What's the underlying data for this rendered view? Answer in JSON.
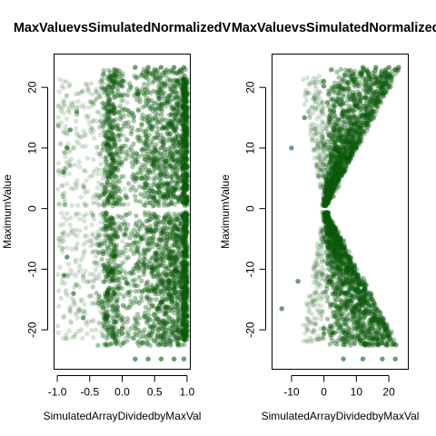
{
  "chart_data": [
    {
      "type": "scatter",
      "title": "MaxValuevsSimulatedNormalizedV",
      "xlabel": "SimulatedArrayDividedbyMaxVal",
      "ylabel": "MaximumValue",
      "xlim": [
        -1.05,
        1.05
      ],
      "ylim": [
        -26.5,
        25.5
      ],
      "xticks": [
        -1.0,
        -0.5,
        0.0,
        0.5,
        1.0
      ],
      "xtick_labels": [
        "-1.0",
        "-0.5",
        "0.0",
        "0.5",
        "1.0"
      ],
      "yticks": [
        -20,
        -10,
        0,
        10,
        20
      ],
      "ytick_labels": [
        "-20",
        "-10",
        "0",
        "10",
        "20"
      ],
      "point_color": "#0b5a0b",
      "grid": false,
      "shape": "ratio",
      "points": [
        {
          "x": 0.0,
          "y": 21.0
        },
        {
          "x": 0.0,
          "y": 20.2
        },
        {
          "x": -0.05,
          "y": 20.6
        },
        {
          "x": 0.0,
          "y": -19.8
        },
        {
          "x": 0.0,
          "y": -20.6
        },
        {
          "x": -0.05,
          "y": -20.2
        },
        {
          "x": 0.2,
          "y": 23.3
        },
        {
          "x": 0.4,
          "y": 23.3
        },
        {
          "x": 0.6,
          "y": 23.3
        },
        {
          "x": 0.8,
          "y": 23.3
        },
        {
          "x": 0.95,
          "y": 23.3
        },
        {
          "x": 0.2,
          "y": -24.8
        },
        {
          "x": 0.4,
          "y": -24.8
        },
        {
          "x": 0.6,
          "y": -24.8
        },
        {
          "x": 0.8,
          "y": -24.8
        },
        {
          "x": 0.95,
          "y": -24.8
        },
        {
          "x": -0.85,
          "y": 10.0
        },
        {
          "x": -0.9,
          "y": 6.0
        },
        {
          "x": -0.8,
          "y": 13.0
        },
        {
          "x": -0.7,
          "y": 16.0
        },
        {
          "x": -0.85,
          "y": -8.0
        },
        {
          "x": -0.9,
          "y": -11.0
        },
        {
          "x": -0.75,
          "y": -14.0
        },
        {
          "x": -0.6,
          "y": -18.0
        },
        {
          "x": 0.5,
          "y": 10.0
        },
        {
          "x": 0.5,
          "y": -10.0
        },
        {
          "x": 0.3,
          "y": 5.0
        },
        {
          "x": 0.3,
          "y": -5.0
        }
      ]
    },
    {
      "type": "scatter",
      "title": "MaxValuevsSimulatedNormalizedV",
      "xlabel": "SimulatedArrayDividedbyMaxVal",
      "ylabel": "MaximumValue",
      "xlim": [
        -16,
        26
      ],
      "ylim": [
        -26.5,
        25.5
      ],
      "xticks": [
        -10,
        0,
        10,
        20
      ],
      "xtick_labels": [
        "-10",
        "0",
        "10",
        "20"
      ],
      "yticks": [
        -20,
        -10,
        0,
        10,
        20
      ],
      "ytick_labels": [
        "-20",
        "-10",
        "0",
        "10",
        "20"
      ],
      "point_color": "#0b5a0b",
      "grid": false,
      "shape": "product",
      "points": [
        {
          "x": 0.0,
          "y": 21.0
        },
        {
          "x": 0.0,
          "y": 20.2
        },
        {
          "x": 0.0,
          "y": -19.8
        },
        {
          "x": 0.0,
          "y": -20.6
        },
        {
          "x": 12.0,
          "y": 23.3
        },
        {
          "x": 16.0,
          "y": 23.3
        },
        {
          "x": 20.0,
          "y": 23.3
        },
        {
          "x": 23.0,
          "y": 23.3
        },
        {
          "x": 6.0,
          "y": -24.8
        },
        {
          "x": 12.0,
          "y": -24.8
        },
        {
          "x": 18.0,
          "y": -24.8
        },
        {
          "x": 22.0,
          "y": -24.8
        },
        {
          "x": -13.0,
          "y": -16.5
        },
        {
          "x": -10.0,
          "y": 10.0
        },
        {
          "x": -6.0,
          "y": 15.0
        },
        {
          "x": -8.0,
          "y": -12.0
        },
        {
          "x": 10.0,
          "y": 10.0
        },
        {
          "x": 5.0,
          "y": -5.0
        },
        {
          "x": 20.0,
          "y": 20.0
        },
        {
          "x": 15.0,
          "y": -15.0
        }
      ]
    }
  ]
}
